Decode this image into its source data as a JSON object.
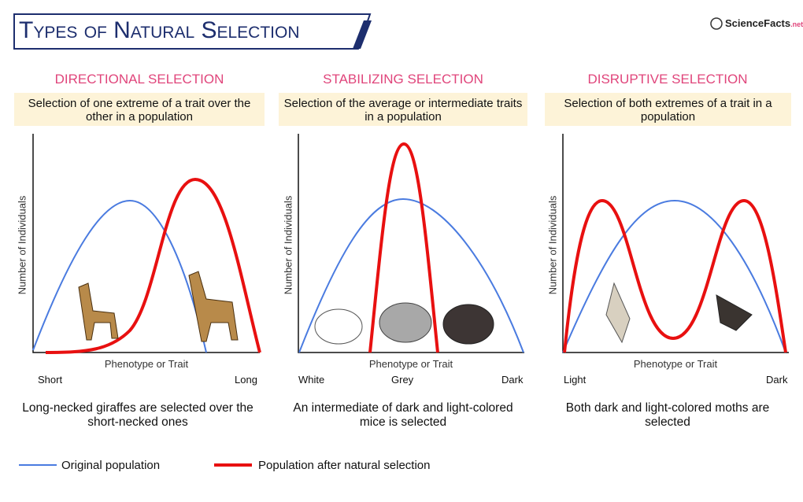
{
  "header": {
    "title": "Types of Natural Selection",
    "logo": "ScienceFacts",
    "logo_suffix": ".net"
  },
  "panels": [
    {
      "heading": "DIRECTIONAL SELECTION",
      "description": "Selection of one extreme of a trait over the other in a population",
      "y_label": "Number of Individuals",
      "x_label": "Phenotype or Trait",
      "x_labels": [
        "Short",
        "Long"
      ],
      "caption": "Long-necked giraffes are selected over the short-necked ones"
    },
    {
      "heading": "STABILIZING SELECTION",
      "description": "Selection of the average or intermediate traits in a population",
      "y_label": "Number of Individuals",
      "x_label": "Phenotype or Trait",
      "x_labels": [
        "White",
        "Grey",
        "Dark"
      ],
      "caption": "An intermediate of dark and light-colored mice is selected"
    },
    {
      "heading": "DISRUPTIVE SELECTION",
      "description": "Selection of both extremes of a trait in a population",
      "y_label": "Number of Individuals",
      "x_label": "Phenotype or Trait",
      "x_labels": [
        "Light",
        "Dark"
      ],
      "caption": "Both dark and light-colored moths are selected"
    }
  ],
  "legend": [
    "Original population",
    "Population after natural selection"
  ]
}
